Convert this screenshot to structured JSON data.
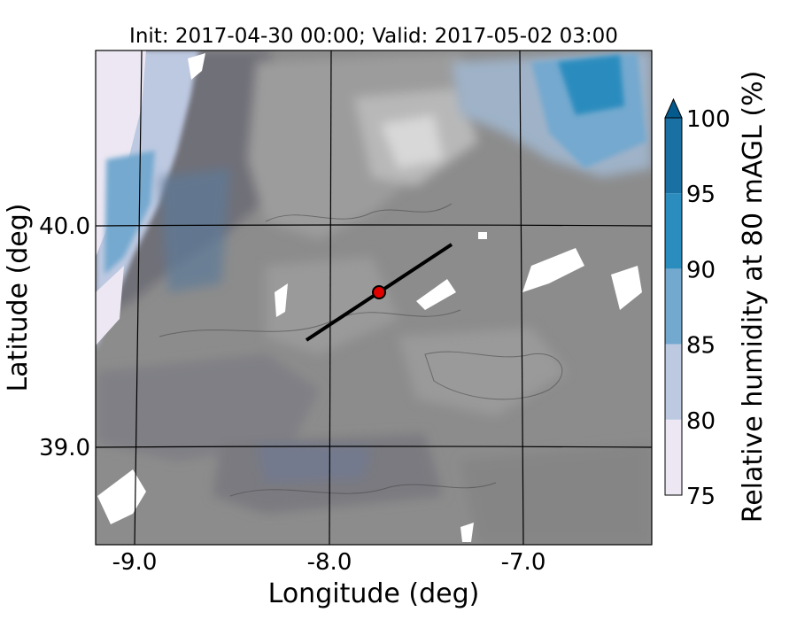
{
  "title": "Init: 2017-04-30 00:00; Valid: 2017-05-02 03:00",
  "x_axis": {
    "label": "Longitude (deg)",
    "range": [
      -9.2,
      -6.35
    ],
    "ticks": [
      {
        "value": -9.0,
        "label": "-9.0"
      },
      {
        "value": -8.0,
        "label": "-8.0"
      },
      {
        "value": -7.0,
        "label": "-7.0"
      }
    ]
  },
  "y_axis": {
    "label": "Latitude (deg)",
    "range": [
      38.55,
      40.8
    ],
    "ticks": [
      {
        "value": 39.0,
        "label": "39.0"
      },
      {
        "value": 40.0,
        "label": "40.0"
      }
    ]
  },
  "colorbar": {
    "label": "Relative humidity at 80 mAGL (%)",
    "levels": [
      75,
      80,
      85,
      90,
      95,
      100
    ],
    "tick_labels": [
      "75",
      "80",
      "85",
      "90",
      "95",
      "100"
    ],
    "colors": [
      "#ece7f2",
      "#bdc9e1",
      "#74a9cf",
      "#2b8cbe",
      "#1a6fa3",
      "#045a8d"
    ],
    "extend": "max"
  },
  "map": {
    "terrain_shading": "grey hillshade",
    "gridlines": true,
    "cross_section_line": {
      "start": [
        -8.12,
        39.47
      ],
      "end": [
        -7.35,
        39.91
      ],
      "color": "#000000"
    },
    "site_marker": {
      "lon": -7.75,
      "lat": 39.68,
      "color": "#e00000"
    }
  }
}
